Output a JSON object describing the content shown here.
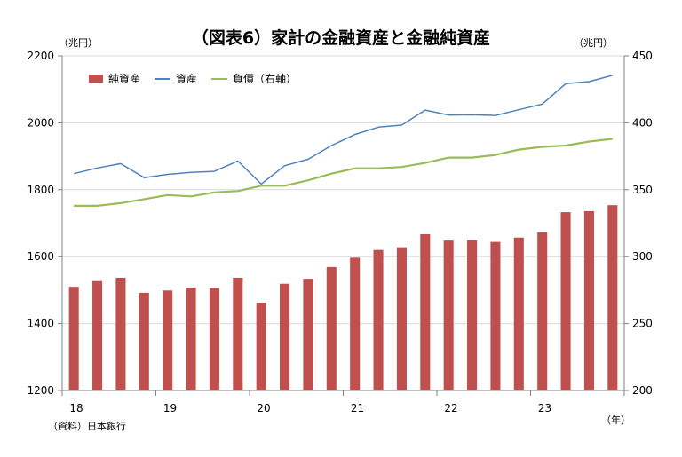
{
  "chart_data": {
    "type": "bar",
    "title": "（図表6）家計の金融資産と金融純資産",
    "left_axis_unit": "（兆円）",
    "right_axis_unit": "（兆円）",
    "x_axis_unit": "（年）",
    "source": "（資料）日本銀行",
    "left_ylim": [
      1200,
      2200
    ],
    "left_yticks": [
      "1200",
      "1400",
      "1600",
      "1800",
      "2000",
      "2200"
    ],
    "right_ylim": [
      200,
      450
    ],
    "right_yticks": [
      "200",
      "250",
      "300",
      "350",
      "400",
      "450"
    ],
    "x_tick_labels": [
      "18",
      "19",
      "20",
      "21",
      "22",
      "23"
    ],
    "legend_position": "top-left",
    "grid": "horizontal",
    "periods": [
      "2018Q1",
      "2018Q2",
      "2018Q3",
      "2018Q4",
      "2019Q1",
      "2019Q2",
      "2019Q3",
      "2019Q4",
      "2020Q1",
      "2020Q2",
      "2020Q3",
      "2020Q4",
      "2021Q1",
      "2021Q2",
      "2021Q3",
      "2021Q4",
      "2022Q1",
      "2022Q2",
      "2022Q3",
      "2022Q4",
      "2023Q1",
      "2023Q2",
      "2023Q3",
      "2023Q4"
    ],
    "series": [
      {
        "name": "純資産",
        "kind": "bar",
        "axis": "left",
        "color": "#c0504d",
        "values": [
          1510,
          1527,
          1537,
          1492,
          1499,
          1507,
          1506,
          1537,
          1462,
          1519,
          1534,
          1569,
          1597,
          1620,
          1628,
          1667,
          1648,
          1649,
          1644,
          1657,
          1673,
          1733,
          1736,
          1754
        ]
      },
      {
        "name": "資産",
        "kind": "line",
        "axis": "left",
        "color": "#4f81bd",
        "values": [
          1848,
          1865,
          1878,
          1836,
          1846,
          1852,
          1855,
          1886,
          1817,
          1872,
          1891,
          1932,
          1965,
          1987,
          1993,
          2038,
          2023,
          2024,
          2022,
          2039,
          2056,
          2117,
          2123,
          2142
        ]
      },
      {
        "name": "負債（右軸）",
        "kind": "line",
        "axis": "right",
        "color": "#9bbb59",
        "values": [
          338,
          338,
          340,
          343,
          346,
          345,
          348,
          349,
          353,
          353,
          357,
          362,
          366,
          366,
          367,
          370,
          374,
          374,
          376,
          380,
          382,
          383,
          386,
          388
        ]
      }
    ]
  }
}
